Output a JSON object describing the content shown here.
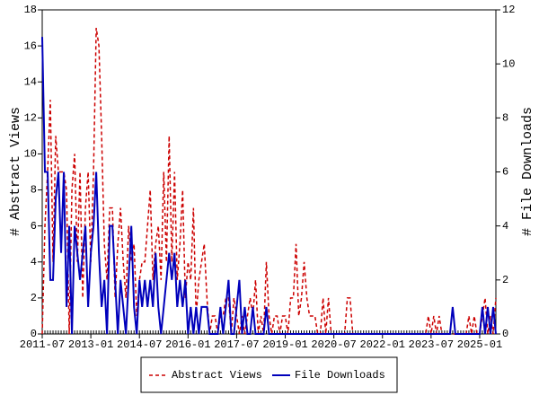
{
  "chart_data": {
    "type": "line",
    "x": [
      "2011-07",
      "2011-08",
      "2011-09",
      "2011-10",
      "2011-11",
      "2011-12",
      "2012-01",
      "2012-02",
      "2012-03",
      "2012-04",
      "2012-05",
      "2012-06",
      "2012-07",
      "2012-08",
      "2012-09",
      "2012-10",
      "2012-11",
      "2012-12",
      "2013-01",
      "2013-02",
      "2013-03",
      "2013-04",
      "2013-05",
      "2013-06",
      "2013-07",
      "2013-08",
      "2013-09",
      "2013-10",
      "2013-11",
      "2013-12",
      "2014-01",
      "2014-02",
      "2014-03",
      "2014-04",
      "2014-05",
      "2014-06",
      "2014-07",
      "2014-08",
      "2014-09",
      "2014-10",
      "2014-11",
      "2014-12",
      "2015-01",
      "2015-02",
      "2015-03",
      "2015-04",
      "2015-05",
      "2015-06",
      "2015-07",
      "2015-08",
      "2015-09",
      "2015-10",
      "2015-11",
      "2015-12",
      "2016-01",
      "2016-02",
      "2016-03",
      "2016-04",
      "2016-05",
      "2016-06",
      "2016-07",
      "2016-08",
      "2016-09",
      "2016-10",
      "2016-11",
      "2016-12",
      "2017-01",
      "2017-02",
      "2017-03",
      "2017-04",
      "2017-05",
      "2017-06",
      "2017-07",
      "2017-08",
      "2017-09",
      "2017-10",
      "2017-11",
      "2017-12",
      "2018-01",
      "2018-02",
      "2018-03",
      "2018-04",
      "2018-05",
      "2018-06",
      "2018-07",
      "2018-08",
      "2018-09",
      "2018-10",
      "2018-11",
      "2018-12",
      "2019-01",
      "2019-02",
      "2019-03",
      "2019-04",
      "2019-05",
      "2019-06",
      "2019-07",
      "2019-08",
      "2019-09",
      "2019-10",
      "2019-11",
      "2019-12",
      "2020-01",
      "2020-02",
      "2020-03",
      "2020-04",
      "2020-05",
      "2020-06",
      "2020-07",
      "2020-08",
      "2020-09",
      "2020-10",
      "2020-11",
      "2020-12",
      "2021-01",
      "2021-02",
      "2021-03",
      "2021-04",
      "2021-05",
      "2021-06",
      "2021-07",
      "2021-08",
      "2021-09",
      "2021-10",
      "2021-11",
      "2021-12",
      "2022-01",
      "2022-02",
      "2022-03",
      "2022-04",
      "2022-05",
      "2022-06",
      "2022-07",
      "2022-08",
      "2022-09",
      "2022-10",
      "2022-11",
      "2022-12",
      "2023-01",
      "2023-02",
      "2023-03",
      "2023-04",
      "2023-05",
      "2023-06",
      "2023-07",
      "2023-08",
      "2023-09",
      "2023-10",
      "2023-11",
      "2023-12",
      "2024-01",
      "2024-02",
      "2024-03",
      "2024-04",
      "2024-05",
      "2024-06",
      "2024-07",
      "2024-08",
      "2024-09",
      "2024-10",
      "2024-11",
      "2024-12",
      "2025-01",
      "2025-02",
      "2025-03",
      "2025-04",
      "2025-05",
      "2025-06",
      "2025-07"
    ],
    "xticks": [
      "2011-07",
      "2013-01",
      "2014-07",
      "2016-01",
      "2017-07",
      "2019-01",
      "2020-07",
      "2022-01",
      "2023-07",
      "2025-01"
    ],
    "ylabel": "# Abstract Views",
    "y2label": "# File Downloads",
    "ylim": [
      0,
      18
    ],
    "yticks": [
      0,
      2,
      4,
      6,
      8,
      10,
      12,
      14,
      16,
      18
    ],
    "y2lim": [
      0,
      12
    ],
    "y2ticks": [
      0,
      2,
      4,
      6,
      8,
      10,
      12
    ],
    "legend": "bottom",
    "series": [
      {
        "name": "Abstract Views",
        "color": "#cc0000",
        "dash": true,
        "values": [
          0,
          6,
          9,
          13,
          4,
          11,
          9,
          9,
          9,
          8,
          0,
          8,
          10,
          4,
          9,
          2,
          7,
          9,
          4,
          9,
          17,
          16,
          11,
          5,
          3,
          7,
          7,
          2,
          5,
          7,
          4,
          2,
          6,
          4,
          5,
          1,
          3,
          4,
          4,
          6,
          8,
          3,
          5,
          6,
          3,
          9,
          4,
          11,
          4,
          9,
          3,
          5,
          8,
          2,
          4,
          3,
          7,
          1,
          3,
          4,
          5,
          2,
          0,
          1,
          1,
          0,
          1,
          1,
          2,
          2,
          0,
          2,
          1,
          0,
          1,
          0,
          1,
          2,
          1,
          3,
          0,
          1,
          0,
          4,
          1,
          0,
          1,
          1,
          0,
          1,
          1,
          0,
          2,
          2,
          5,
          1,
          2,
          4,
          2,
          1,
          1,
          1,
          0,
          0,
          2,
          0,
          2,
          0,
          0,
          0,
          0,
          0,
          0,
          2,
          2,
          0,
          0,
          0,
          0,
          0,
          0,
          0,
          0,
          0,
          0,
          0,
          0,
          0,
          0,
          0,
          0,
          0,
          0,
          0,
          0,
          0,
          0,
          0,
          0,
          0,
          0,
          0,
          0,
          1,
          0,
          1,
          0,
          1,
          0,
          0,
          0,
          0,
          0,
          0,
          0,
          0,
          0,
          0,
          1,
          0,
          1,
          0,
          0,
          1,
          2,
          0,
          1,
          0,
          2
        ]
      },
      {
        "name": "File Downloads",
        "color": "#0000bb",
        "axis": "y2",
        "values": [
          11,
          6,
          6,
          2,
          2,
          5,
          6,
          3,
          6,
          1,
          4,
          0,
          4,
          3,
          2,
          3,
          4,
          1,
          3,
          4,
          6,
          3,
          1,
          2,
          0,
          4,
          4,
          2,
          0,
          2,
          1,
          0,
          2,
          4,
          1,
          0,
          2,
          1,
          2,
          1,
          2,
          1,
          3,
          1,
          0,
          1,
          2,
          3,
          2,
          3,
          1,
          2,
          1,
          2,
          0,
          1,
          0,
          1,
          0,
          1,
          1,
          1,
          0,
          0,
          0,
          0,
          1,
          0,
          1,
          2,
          0,
          0,
          1,
          2,
          0,
          1,
          0,
          0,
          1,
          0,
          0,
          0,
          0,
          1,
          0,
          0,
          0,
          0,
          0,
          0,
          0,
          0,
          0,
          0,
          0,
          0,
          0,
          0,
          0,
          0,
          0,
          0,
          0,
          0,
          0,
          0,
          0,
          0,
          0,
          0,
          0,
          0,
          0,
          0,
          0,
          0,
          0,
          0,
          0,
          0,
          0,
          0,
          0,
          0,
          0,
          0,
          0,
          0,
          0,
          0,
          0,
          0,
          0,
          0,
          0,
          0,
          0,
          0,
          0,
          0,
          0,
          0,
          0,
          0,
          0,
          0,
          0,
          0,
          0,
          0,
          0,
          0,
          1,
          0,
          0,
          0,
          0,
          0,
          0,
          0,
          0,
          0,
          0,
          1,
          0,
          1,
          0,
          1,
          0
        ]
      }
    ]
  }
}
